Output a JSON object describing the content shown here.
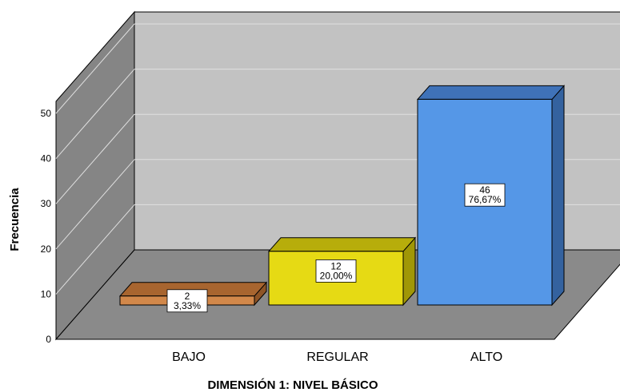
{
  "chart_data": {
    "type": "bar",
    "categories": [
      "BAJO",
      "REGULAR",
      "ALTO"
    ],
    "values": [
      2,
      12,
      46
    ],
    "percent_labels": [
      "3,33%",
      "20,00%",
      "76,67%"
    ],
    "count_labels": [
      "2",
      "12",
      "46"
    ],
    "xlabel": "DIMENSIÓN 1: NIVEL BÁSICO",
    "ylabel": "Frecuencia",
    "ylim": [
      0,
      50
    ],
    "yticks": [
      0,
      10,
      20,
      30,
      40,
      50
    ],
    "grid": true,
    "three_d": true,
    "colors": {
      "bars": [
        "#d2884a",
        "#e6da14",
        "#5597e7"
      ],
      "bar_tops": [
        "#a8652f",
        "#b7ad0b",
        "#3f72b8"
      ],
      "bar_sides": [
        "#8e5426",
        "#a09706",
        "#34629f"
      ],
      "back_wall": "#c2c2c2",
      "side_wall": "#858585",
      "floor": "#8a8a8a",
      "gridline": "#e0e0e0"
    }
  }
}
